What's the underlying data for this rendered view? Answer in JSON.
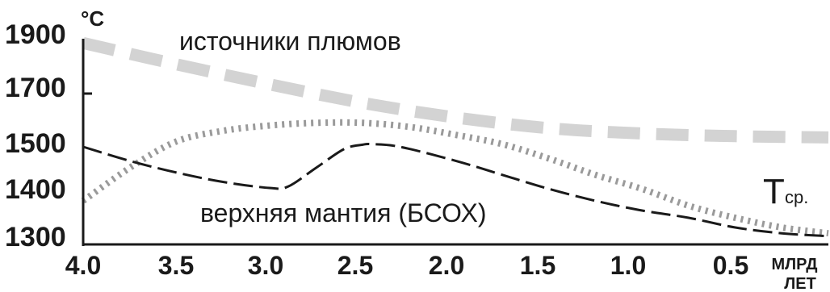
{
  "chart_data": {
    "type": "line",
    "y_unit": "°C",
    "x_unit_line1": "МЛРД",
    "x_unit_line2": "ЛЕТ",
    "xlim": [
      4.0,
      0.0
    ],
    "ylim": [
      1300,
      1900
    ],
    "x_ticks": [
      "4.0",
      "3.5",
      "3.0",
      "2.5",
      "2.0",
      "1.5",
      "1.0",
      "0.5"
    ],
    "y_ticks": [
      "1900",
      "1700",
      "1500",
      "1400",
      "1300"
    ],
    "annotations": {
      "plume_sources": "источники плюмов",
      "upper_mantle": "верхняя мантия (БСОХ)",
      "t_avg_symbol": "T",
      "t_avg_subscript": "ср."
    },
    "series": [
      {
        "name": "источники плюмов",
        "color": "#d3d3d3",
        "style": "wide-dashed",
        "x": [
          4.0,
          3.5,
          3.0,
          2.5,
          2.0,
          1.5,
          1.0,
          0.5,
          0.0
        ],
        "y": [
          1890,
          1810,
          1735,
          1665,
          1610,
          1570,
          1550,
          1540,
          1535
        ]
      },
      {
        "name": "T ср.",
        "color": "#9a9a9a",
        "style": "dotted",
        "x": [
          4.0,
          3.75,
          3.5,
          3.25,
          3.0,
          2.75,
          2.5,
          2.25,
          2.0,
          1.75,
          1.5,
          1.25,
          1.0,
          0.75,
          0.5,
          0.25,
          0.0
        ],
        "y": [
          1385,
          1455,
          1520,
          1560,
          1580,
          1590,
          1590,
          1575,
          1545,
          1510,
          1475,
          1440,
          1410,
          1375,
          1350,
          1330,
          1318
        ]
      },
      {
        "name": "верхняя мантия (БСОХ)",
        "color": "#1a1a1a",
        "style": "dashed",
        "x": [
          4.0,
          3.75,
          3.5,
          3.25,
          3.0,
          2.9,
          2.75,
          2.6,
          2.5,
          2.45,
          2.3,
          2.0,
          1.75,
          1.5,
          1.25,
          1.0,
          0.75,
          0.5,
          0.25,
          0.0
        ],
        "y": [
          1500,
          1470,
          1445,
          1425,
          1412,
          1415,
          1455,
          1495,
          1508,
          1510,
          1500,
          1470,
          1440,
          1410,
          1385,
          1365,
          1350,
          1330,
          1318,
          1312
        ]
      }
    ]
  }
}
